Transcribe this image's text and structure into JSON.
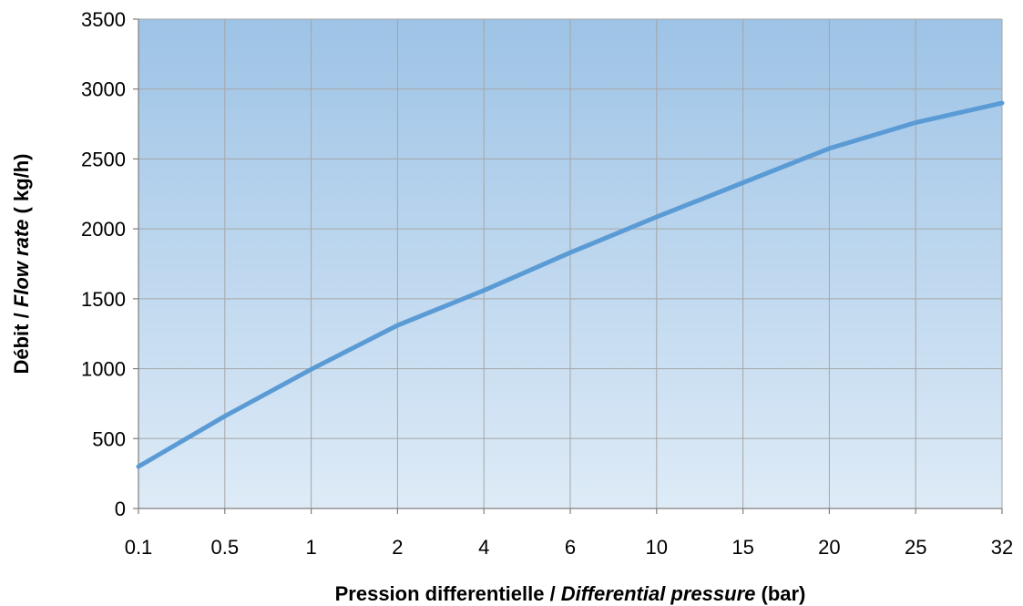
{
  "chart_data": {
    "type": "line",
    "categories": [
      "0.1",
      "0.5",
      "1",
      "2",
      "4",
      "6",
      "10",
      "15",
      "20",
      "25",
      "32"
    ],
    "series": [
      {
        "values": [
          300,
          660,
          995,
          1310,
          1560,
          1830,
          2085,
          2330,
          2575,
          2760,
          2900
        ]
      }
    ],
    "ylim": [
      0,
      3500
    ],
    "yticks": [
      0,
      500,
      1000,
      1500,
      2000,
      2500,
      3000,
      3500
    ],
    "grid": true,
    "legend": "none",
    "xlabel": {
      "part1": "Pression differentielle / ",
      "part2": "Differential pressure",
      "part3": " (bar)"
    },
    "ylabel": {
      "part1": "Débit / ",
      "part2": "Flow rate",
      "part3": " ( kg/h)"
    },
    "colors": {
      "line": "#5b9bd5",
      "plot_top": "#9dc3e6",
      "plot_bottom": "#deebf7"
    }
  }
}
